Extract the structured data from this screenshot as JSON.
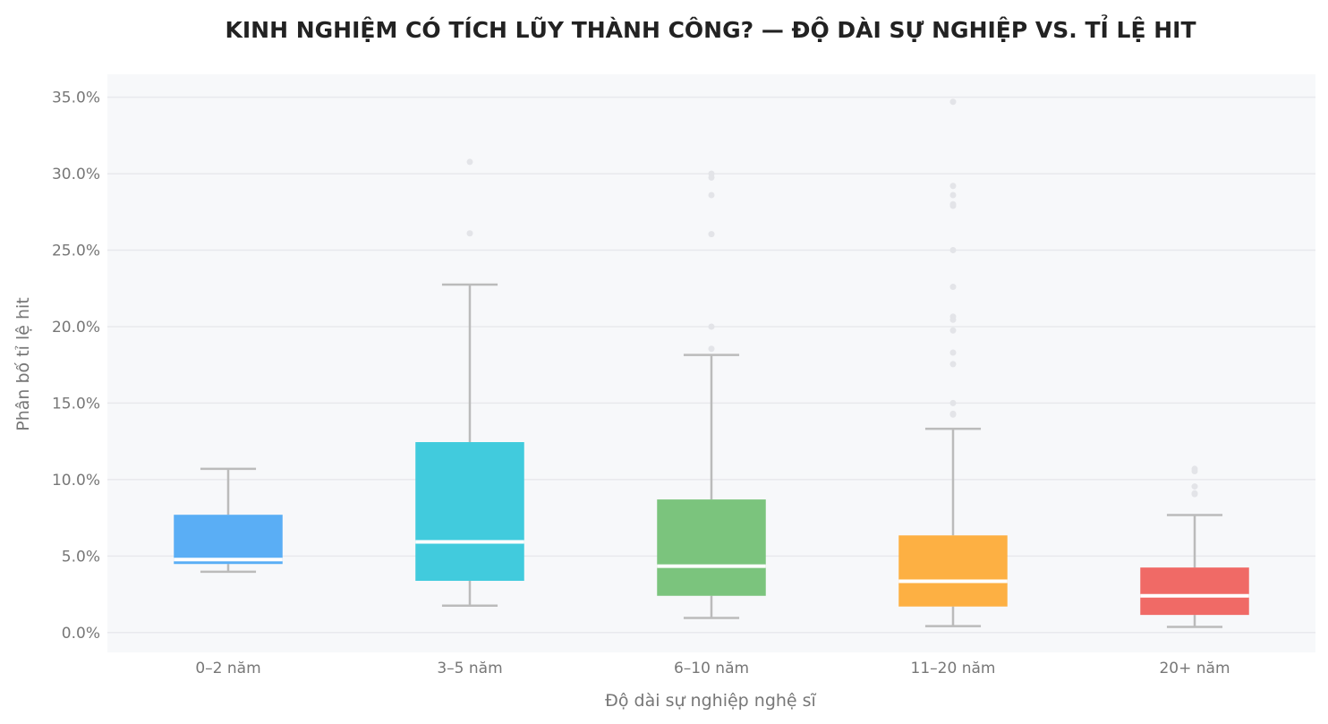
{
  "chart_data": {
    "type": "box",
    "title": "KINH NGHIỆM CÓ TÍCH LŨY THÀNH CÔNG? — ĐỘ DÀI SỰ NGHIỆP VS. TỈ LỆ HIT",
    "xlabel": "Độ dài sự nghiệp nghệ sĩ",
    "ylabel": "Phân bố tỉ lệ hit",
    "ylim": [
      -0.013,
      0.365
    ],
    "yticks": [
      0.0,
      0.05,
      0.1,
      0.15,
      0.2,
      0.25,
      0.3,
      0.35
    ],
    "ytick_labels": [
      "0.0%",
      "5.0%",
      "10.0%",
      "15.0%",
      "20.0%",
      "25.0%",
      "30.0%",
      "35.0%"
    ],
    "grid": true,
    "legend": "none",
    "plot_background": "#f7f8fa",
    "whisker_color": "#bbbbbb",
    "outlier_color": "#e3e4e8",
    "median_color": "#ffffff",
    "categories": [
      "0–2 năm",
      "3–5 năm",
      "6–10 năm",
      "11–20 năm",
      "20+ năm"
    ],
    "boxes": [
      {
        "label": "0–2 năm",
        "color": "#5aaef5",
        "whisker_low": 0.0397,
        "q1": 0.0448,
        "median": 0.0477,
        "q3": 0.077,
        "whisker_high": 0.107,
        "outliers": []
      },
      {
        "label": "3–5 năm",
        "color": "#41cbdd",
        "whisker_low": 0.0176,
        "q1": 0.0338,
        "median": 0.0593,
        "q3": 0.1245,
        "whisker_high": 0.2275,
        "outliers": [
          0.3077,
          0.261
        ]
      },
      {
        "label": "6–10 năm",
        "color": "#7bc47d",
        "whisker_low": 0.0095,
        "q1": 0.024,
        "median": 0.0434,
        "q3": 0.087,
        "whisker_high": 0.1815,
        "outliers": [
          0.3,
          0.2975,
          0.286,
          0.2605,
          0.2,
          0.1855
        ]
      },
      {
        "label": "11–20 năm",
        "color": "#fdb043",
        "whisker_low": 0.0042,
        "q1": 0.017,
        "median": 0.0335,
        "q3": 0.0635,
        "whisker_high": 0.1332,
        "outliers": [
          0.347,
          0.292,
          0.286,
          0.28,
          0.279,
          0.25,
          0.226,
          0.2065,
          0.2045,
          0.1975,
          0.183,
          0.1755,
          0.15,
          0.143,
          0.1425
        ]
      },
      {
        "label": "20+ năm",
        "color": "#f06a66",
        "whisker_low": 0.0037,
        "q1": 0.0115,
        "median": 0.024,
        "q3": 0.0425,
        "whisker_high": 0.0768,
        "outliers": [
          0.107,
          0.1055,
          0.0955,
          0.091,
          0.0905
        ]
      }
    ]
  }
}
